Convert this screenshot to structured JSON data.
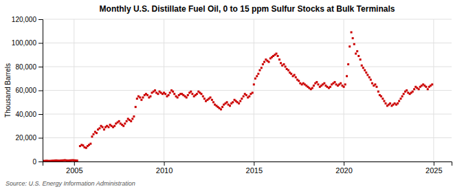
{
  "chart_data": {
    "type": "scatter",
    "title": "Monthly U.S. Distillate Fuel Oil, 0 to 15 ppm Sulfur Stocks at Bulk Terminals",
    "ylabel": "Thousand Barrels",
    "source": "Source: U.S. Energy Information Administration",
    "color": "#cc0000",
    "marker": "square",
    "grid": true,
    "xlim": [
      2003.25,
      2026.0
    ],
    "xticks": [
      2005,
      2010,
      2015,
      2020,
      2025
    ],
    "ylim": [
      0,
      120000
    ],
    "yticks": [
      0,
      {
        "value": 20000,
        "label": "20,000"
      },
      {
        "value": 40000,
        "label": "40,000"
      },
      {
        "value": 60000,
        "label": "60,000"
      },
      {
        "value": 80000,
        "label": "80,000"
      },
      {
        "value": 100000,
        "label": "100,000"
      },
      {
        "value": 120000,
        "label": "120,000"
      }
    ],
    "x": [
      2003.25,
      2003.33,
      2003.42,
      2003.5,
      2003.58,
      2003.67,
      2003.75,
      2003.83,
      2003.92,
      2004.0,
      2004.08,
      2004.17,
      2004.25,
      2004.33,
      2004.42,
      2004.5,
      2004.58,
      2004.67,
      2004.75,
      2004.83,
      2004.92,
      2005.0,
      2005.08,
      2005.17,
      2005.33,
      2005.42,
      2005.5,
      2005.58,
      2005.67,
      2005.75,
      2005.83,
      2005.92,
      2006.0,
      2006.08,
      2006.17,
      2006.25,
      2006.33,
      2006.42,
      2006.5,
      2006.58,
      2006.67,
      2006.75,
      2006.83,
      2006.92,
      2007.0,
      2007.08,
      2007.17,
      2007.25,
      2007.33,
      2007.42,
      2007.5,
      2007.58,
      2007.67,
      2007.75,
      2007.83,
      2007.92,
      2008.0,
      2008.08,
      2008.17,
      2008.25,
      2008.33,
      2008.42,
      2008.5,
      2008.58,
      2008.67,
      2008.75,
      2008.83,
      2008.92,
      2009.0,
      2009.08,
      2009.17,
      2009.25,
      2009.33,
      2009.42,
      2009.5,
      2009.58,
      2009.67,
      2009.75,
      2009.83,
      2009.92,
      2010.0,
      2010.08,
      2010.17,
      2010.25,
      2010.33,
      2010.42,
      2010.5,
      2010.58,
      2010.67,
      2010.75,
      2010.83,
      2010.92,
      2011.0,
      2011.08,
      2011.17,
      2011.25,
      2011.33,
      2011.42,
      2011.5,
      2011.58,
      2011.67,
      2011.75,
      2011.83,
      2011.92,
      2012.0,
      2012.08,
      2012.17,
      2012.25,
      2012.33,
      2012.42,
      2012.5,
      2012.58,
      2012.67,
      2012.75,
      2012.83,
      2012.92,
      2013.0,
      2013.08,
      2013.17,
      2013.25,
      2013.33,
      2013.42,
      2013.5,
      2013.58,
      2013.67,
      2013.75,
      2013.83,
      2013.92,
      2014.0,
      2014.08,
      2014.17,
      2014.25,
      2014.33,
      2014.42,
      2014.5,
      2014.58,
      2014.67,
      2014.75,
      2014.83,
      2014.92,
      2015.0,
      2015.08,
      2015.17,
      2015.25,
      2015.33,
      2015.42,
      2015.5,
      2015.58,
      2015.67,
      2015.75,
      2015.83,
      2015.92,
      2016.0,
      2016.08,
      2016.17,
      2016.25,
      2016.33,
      2016.42,
      2016.5,
      2016.58,
      2016.67,
      2016.75,
      2016.83,
      2016.92,
      2017.0,
      2017.08,
      2017.17,
      2017.25,
      2017.33,
      2017.42,
      2017.5,
      2017.58,
      2017.67,
      2017.75,
      2017.83,
      2017.92,
      2018.0,
      2018.08,
      2018.17,
      2018.25,
      2018.33,
      2018.42,
      2018.5,
      2018.58,
      2018.67,
      2018.75,
      2018.83,
      2018.92,
      2019.0,
      2019.08,
      2019.17,
      2019.25,
      2019.33,
      2019.42,
      2019.5,
      2019.58,
      2019.67,
      2019.75,
      2019.83,
      2019.92,
      2020.0,
      2020.08,
      2020.17,
      2020.25,
      2020.33,
      2020.42,
      2020.5,
      2020.58,
      2020.67,
      2020.75,
      2020.83,
      2020.92,
      2021.0,
      2021.08,
      2021.17,
      2021.25,
      2021.33,
      2021.42,
      2021.5,
      2021.58,
      2021.67,
      2021.75,
      2021.83,
      2021.92,
      2022.0,
      2022.08,
      2022.17,
      2022.25,
      2022.33,
      2022.42,
      2022.5,
      2022.58,
      2022.67,
      2022.75,
      2022.83,
      2022.92,
      2023.0,
      2023.08,
      2023.17,
      2023.25,
      2023.33,
      2023.42,
      2023.5,
      2023.58,
      2023.67,
      2023.75,
      2023.83,
      2023.92,
      2024.0,
      2024.08,
      2024.17,
      2024.25,
      2024.33,
      2024.42,
      2024.5,
      2024.58,
      2024.67,
      2024.75,
      2024.83,
      2024.92
    ],
    "values": [
      400,
      500,
      600,
      600,
      500,
      500,
      600,
      700,
      800,
      900,
      800,
      700,
      800,
      900,
      1000,
      1100,
      900,
      800,
      900,
      1000,
      1100,
      1000,
      900,
      800,
      13000,
      14000,
      13500,
      12000,
      11500,
      13000,
      14000,
      15000,
      21000,
      23000,
      25000,
      24000,
      27000,
      28000,
      30000,
      29000,
      27000,
      29000,
      30000,
      29000,
      31000,
      30000,
      29000,
      30000,
      32000,
      33000,
      34000,
      32000,
      31000,
      30000,
      32000,
      34000,
      36000,
      35000,
      34000,
      36000,
      38000,
      46000,
      53000,
      55000,
      54000,
      52000,
      54000,
      56000,
      57000,
      56000,
      54000,
      55000,
      58000,
      59000,
      60000,
      58000,
      57000,
      59000,
      58000,
      57000,
      58000,
      57000,
      55000,
      56000,
      58000,
      60000,
      59000,
      57000,
      55000,
      54000,
      56000,
      57000,
      57000,
      56000,
      55000,
      54000,
      56000,
      58000,
      59000,
      57000,
      55000,
      56000,
      57000,
      59000,
      58000,
      57000,
      55000,
      53000,
      51000,
      52000,
      53000,
      54000,
      52000,
      50000,
      48000,
      47000,
      46000,
      45000,
      44000,
      46000,
      48000,
      49000,
      50000,
      48000,
      47000,
      49000,
      50000,
      52000,
      51000,
      50000,
      49000,
      51000,
      53000,
      55000,
      57000,
      56000,
      54000,
      55000,
      57000,
      58000,
      65000,
      70000,
      72000,
      74000,
      77000,
      79000,
      82000,
      84000,
      86000,
      85000,
      84000,
      87000,
      88000,
      89000,
      90000,
      91000,
      89000,
      86000,
      83000,
      81000,
      82000,
      80000,
      78000,
      77000,
      75000,
      74000,
      72000,
      73000,
      71000,
      69000,
      68000,
      66000,
      65000,
      66000,
      65000,
      64000,
      63000,
      62000,
      61000,
      62000,
      64000,
      66000,
      67000,
      65000,
      63000,
      64000,
      65000,
      66000,
      64000,
      63000,
      62000,
      63000,
      65000,
      66000,
      67000,
      65000,
      64000,
      65000,
      66000,
      64000,
      63000,
      65000,
      72000,
      82000,
      97000,
      109000,
      104000,
      99000,
      91000,
      93000,
      89000,
      86000,
      81000,
      79000,
      77000,
      75000,
      73000,
      71000,
      69000,
      66000,
      64000,
      65000,
      63000,
      59000,
      56000,
      55000,
      53000,
      51000,
      49000,
      47000,
      48000,
      49000,
      47000,
      48000,
      49000,
      48000,
      49000,
      51000,
      53000,
      55000,
      57000,
      59000,
      60000,
      58000,
      57000,
      58000,
      59000,
      61000,
      63000,
      62000,
      61000,
      63000,
      64000,
      65000,
      64000,
      63000,
      61000,
      63000,
      64000,
      65000
    ]
  }
}
